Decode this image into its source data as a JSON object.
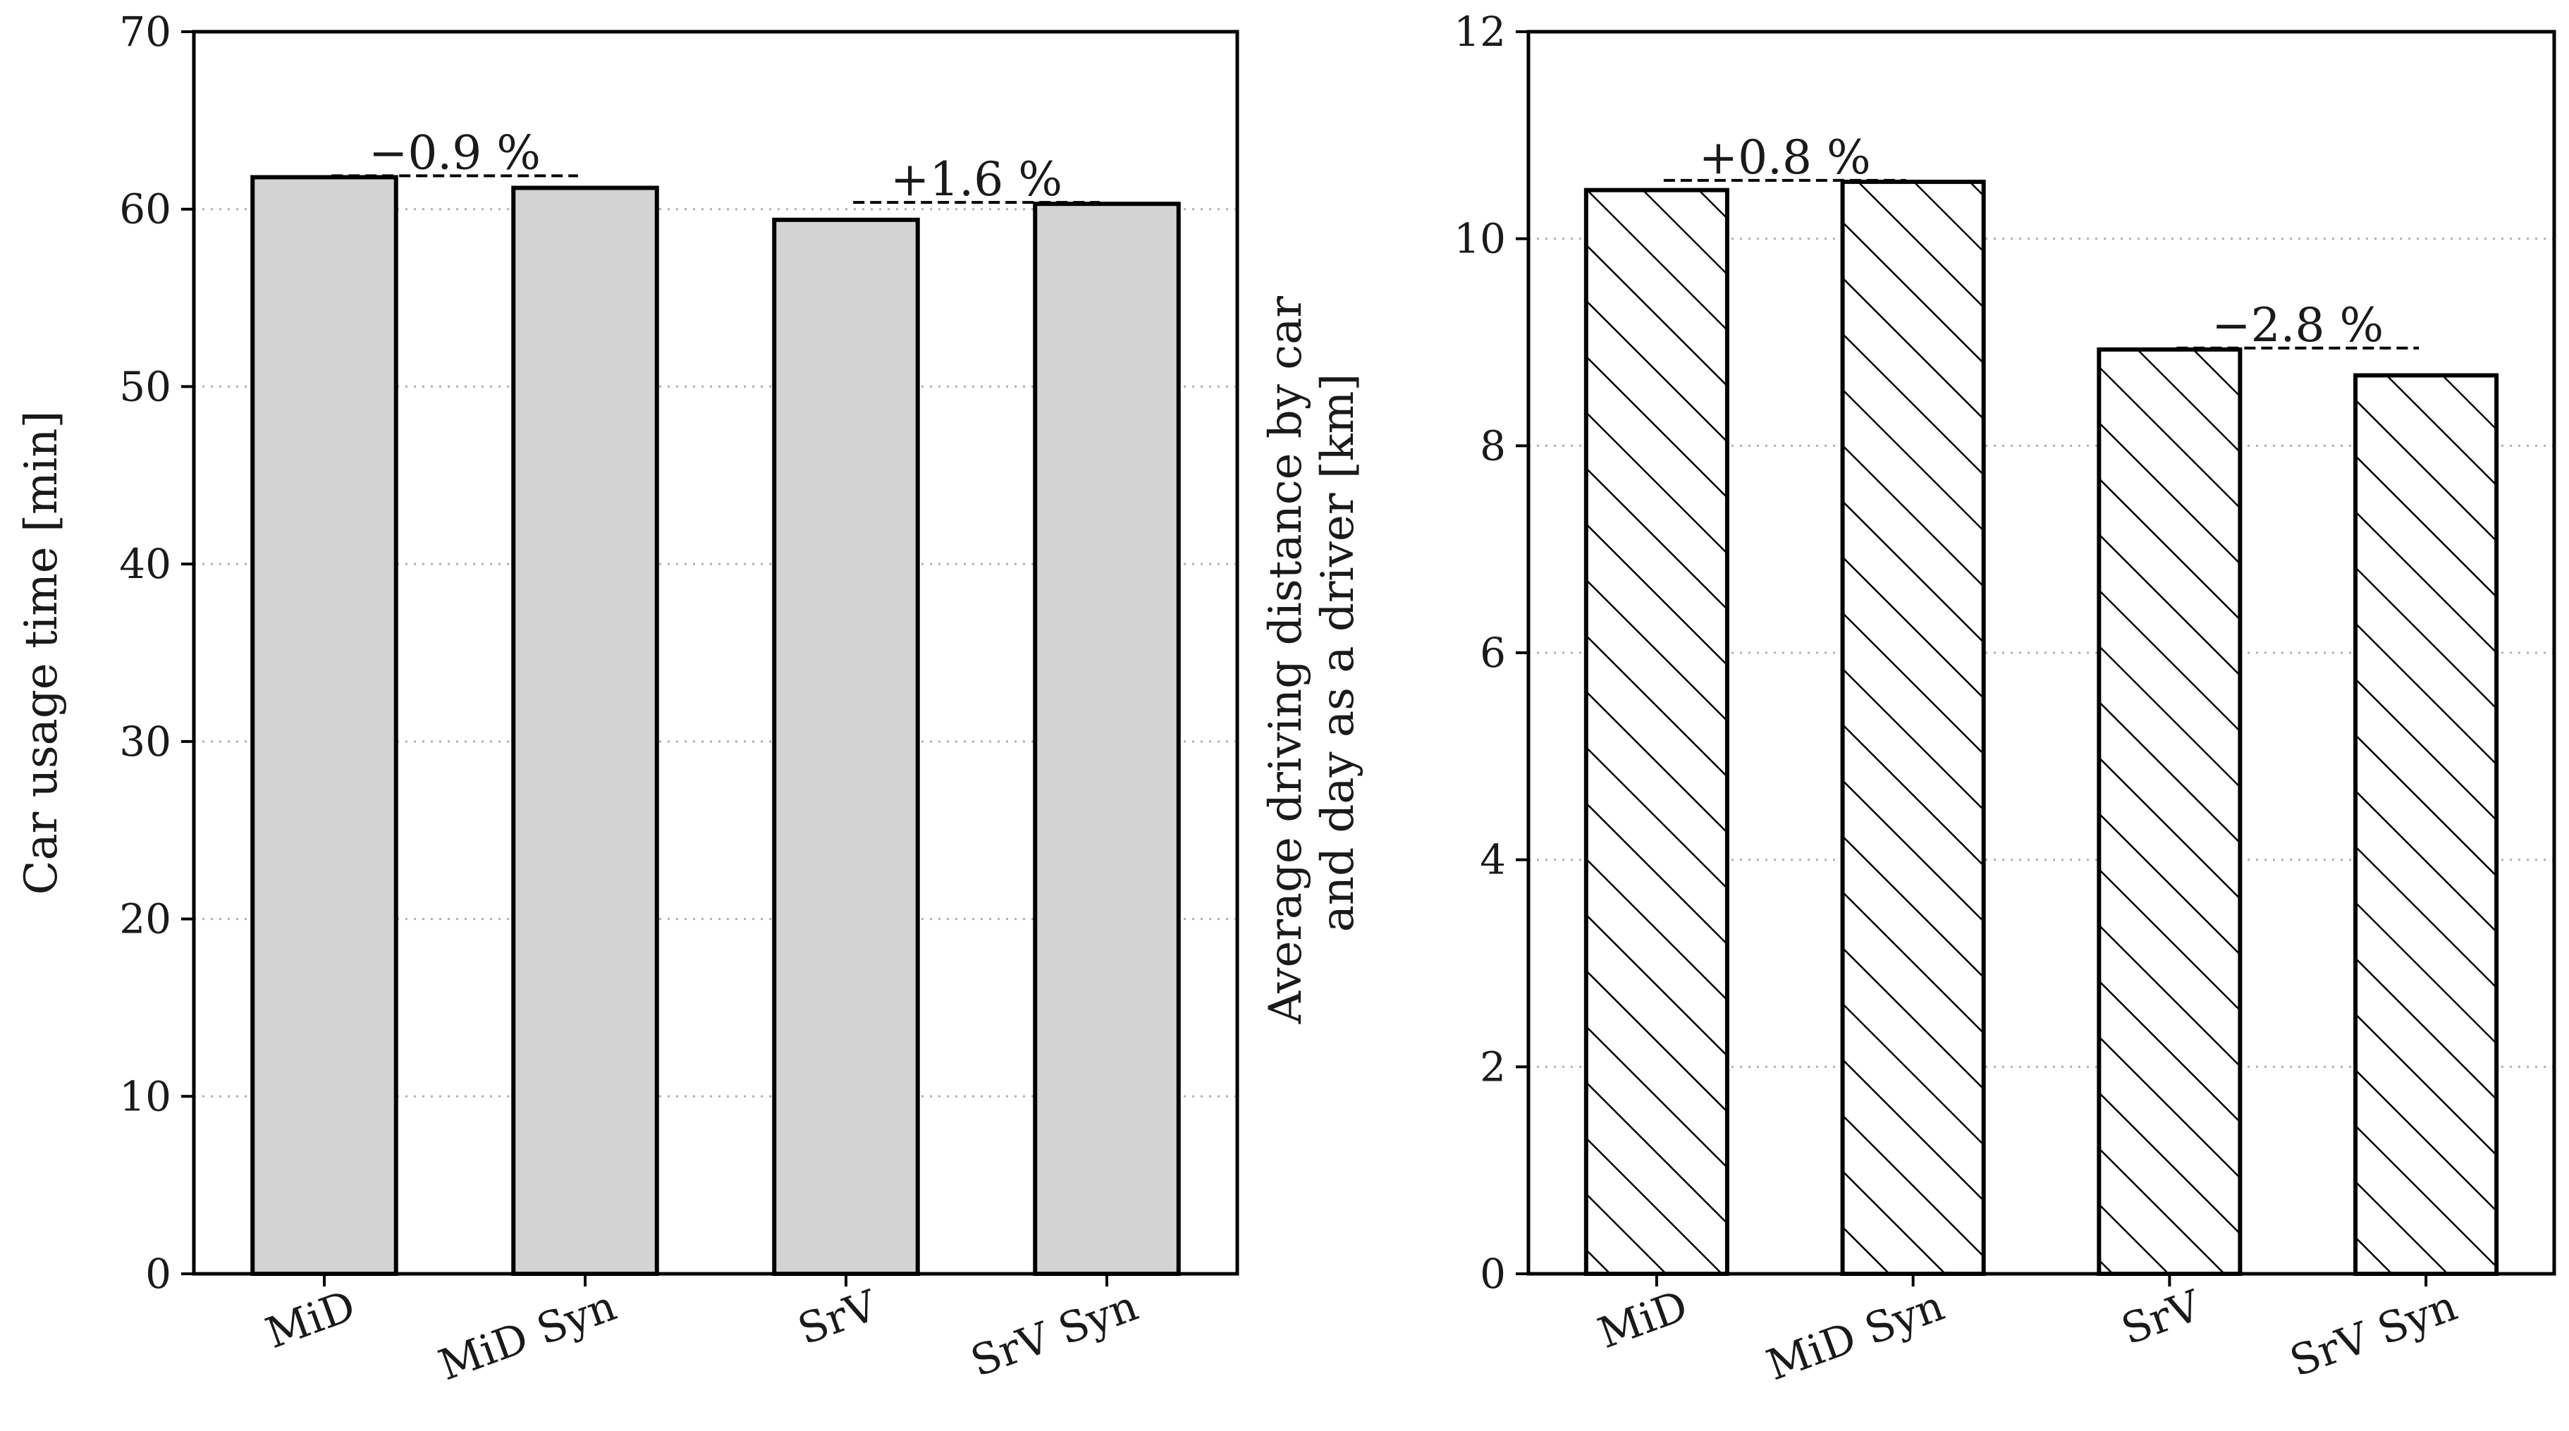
{
  "chart_data": [
    {
      "type": "bar",
      "categories": [
        "MiD",
        "MiD Syn",
        "SrV",
        "SrV Syn"
      ],
      "values": [
        61.8,
        61.2,
        59.4,
        60.3
      ],
      "xlabel": "",
      "ylabel": "Car usage time [min]",
      "ylim": [
        0,
        70
      ],
      "yticks": [
        0,
        10,
        20,
        30,
        40,
        50,
        60,
        70
      ],
      "bar_fill": "#d3d3d3",
      "hatch": false,
      "grid": "horizontal dotted",
      "annotations": [
        {
          "text": "−0.9 %",
          "from": 0,
          "to": 1
        },
        {
          "text": "+1.6 %",
          "from": 2,
          "to": 3
        }
      ]
    },
    {
      "type": "bar",
      "categories": [
        "MiD",
        "MiD Syn",
        "SrV",
        "SrV Syn"
      ],
      "values": [
        10.47,
        10.55,
        8.93,
        8.68
      ],
      "xlabel": "",
      "ylabel_lines": [
        "Average driving distance by car",
        "and day as a driver [km]"
      ],
      "ylim": [
        0,
        12
      ],
      "yticks": [
        0,
        2,
        4,
        6,
        8,
        10,
        12
      ],
      "bar_fill": "#ffffff",
      "hatch": true,
      "grid": "horizontal dotted",
      "annotations": [
        {
          "text": "+0.8 %",
          "from": 0,
          "to": 1
        },
        {
          "text": "−2.8 %",
          "from": 2,
          "to": 3
        }
      ]
    }
  ]
}
